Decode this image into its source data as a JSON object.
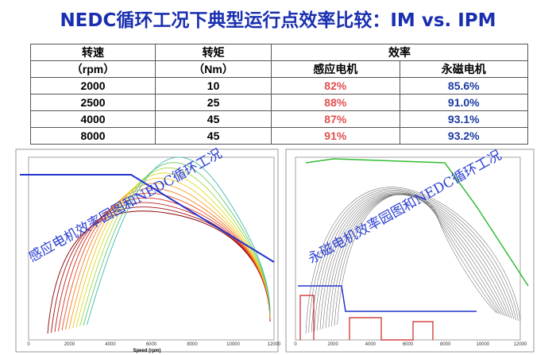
{
  "title": "NEDC循环工况下典型运行点效率比较：IM vs. IPM",
  "table": {
    "header": [
      "转速",
      "转矩",
      "效率"
    ],
    "subheader": [
      "（rpm）",
      "（Nm）",
      "感应电机",
      "永磁电机"
    ],
    "rows": [
      [
        "2000",
        "10",
        "82%",
        "85.6%"
      ],
      [
        "2500",
        "25",
        "88%",
        "91.0%"
      ],
      [
        "4000",
        "45",
        "87%",
        "93.1%"
      ],
      [
        "8000",
        "45",
        "91%",
        "93.2%"
      ]
    ]
  },
  "figures": [
    {
      "caption": "感应电机效率园图和NEDC循环工况",
      "x_label": "Speed (rpm)",
      "x_ticks": [
        "0",
        "2000",
        "4000",
        "6000",
        "8000",
        "10000",
        "12000"
      ]
    },
    {
      "caption": "永磁电机效率园图和NEDC循环工况",
      "x_ticks": [
        "0",
        "2000",
        "4000",
        "6000",
        "8000",
        "10000",
        "12000"
      ]
    }
  ]
}
